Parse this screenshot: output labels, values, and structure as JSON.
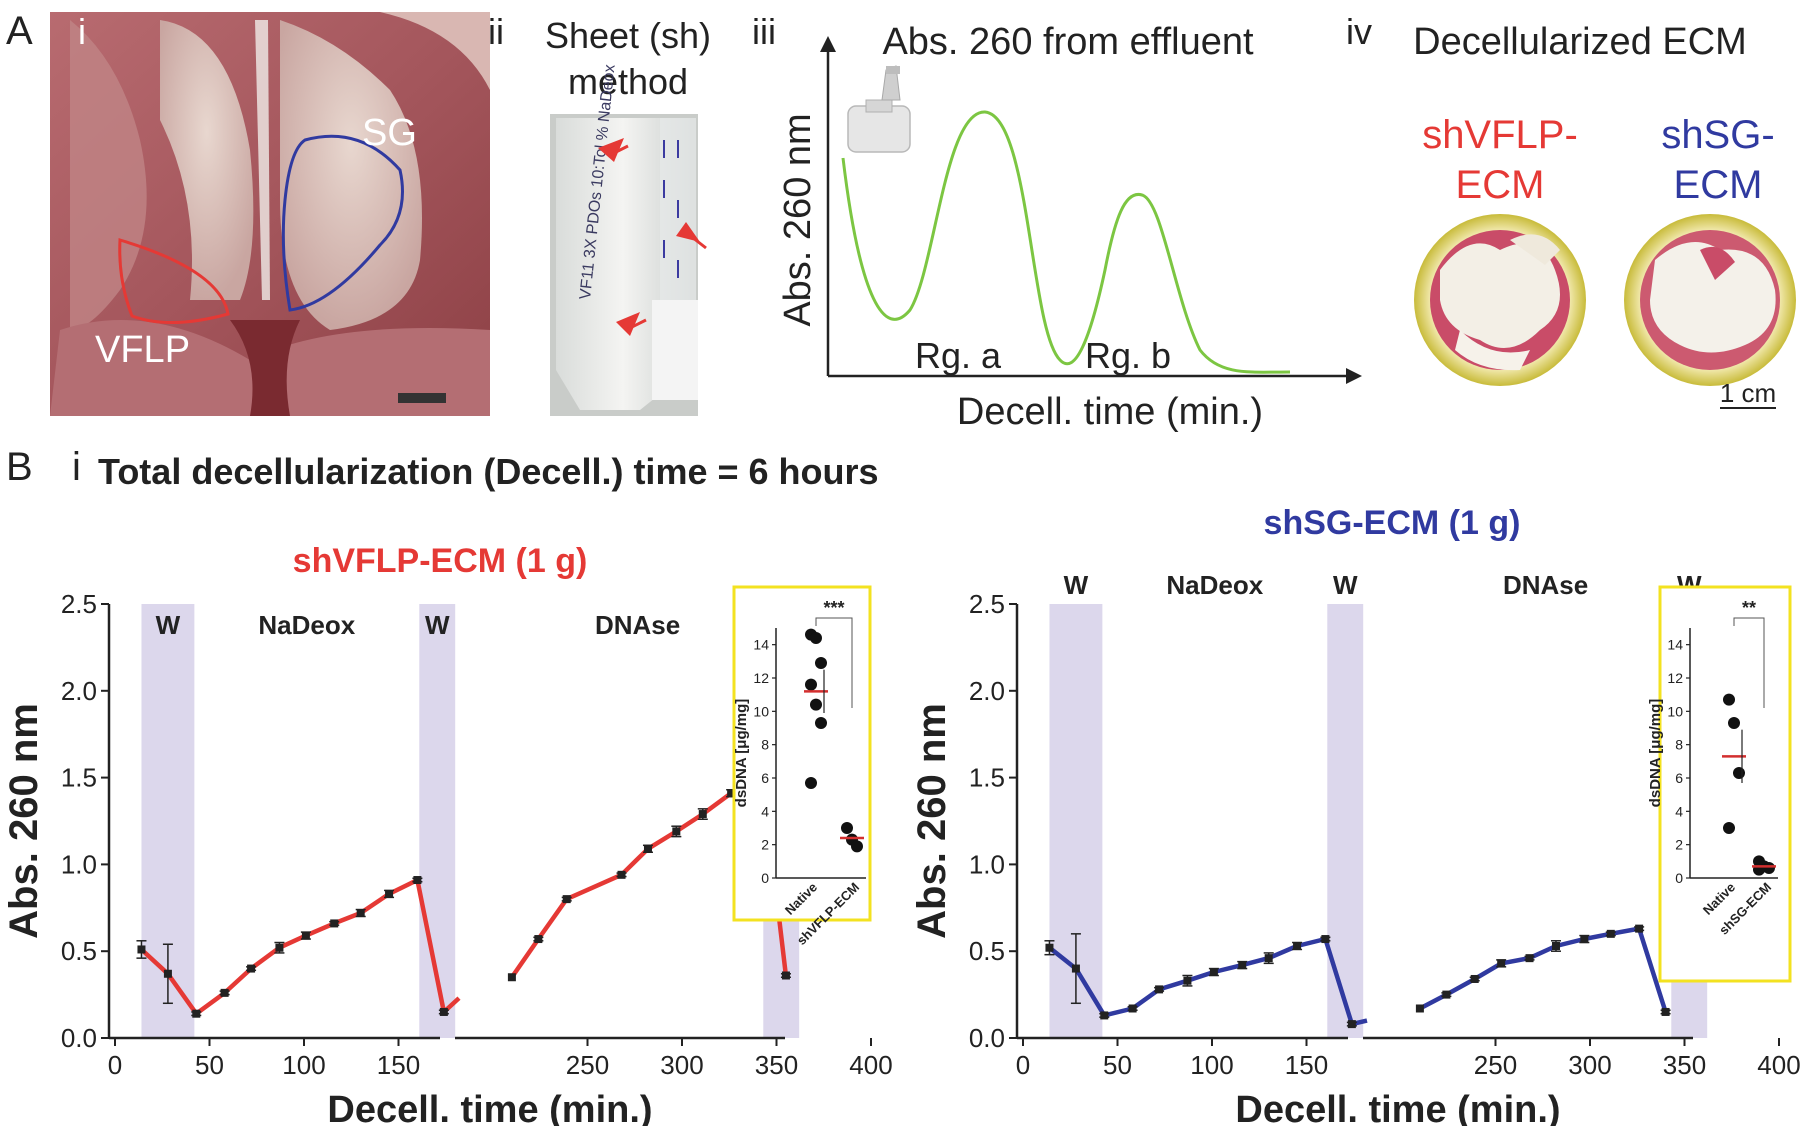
{
  "panel_letters": {
    "A": "A",
    "B": "B"
  },
  "panel_A": {
    "i": {
      "label": "i",
      "region_sg": "SG",
      "region_vflp": "VFLP",
      "scale_bar_label": "scale bar"
    },
    "ii": {
      "label": "ii",
      "title_line1": "Sheet (sh)",
      "title_line2": "method",
      "tube_writing": "VF11 3X PDOs 10:Tol % NaDeox"
    },
    "iii": {
      "label": "iii",
      "title": "Abs. 260 from effluent",
      "ylabel": "Abs. 260 nm",
      "xlabel": "Decell. time (min.)",
      "region_a": "Rg. a",
      "region_b": "Rg. b",
      "instrument_icon": "spectrophotometer-icon"
    },
    "iv": {
      "label": "iv",
      "title": "Decellularized ECM",
      "sample_left_line1": "shVFLP-",
      "sample_left_line2": "ECM",
      "sample_right_line1": "shSG-",
      "sample_right_line2": "ECM",
      "scale_label": "1 cm"
    }
  },
  "panel_B": {
    "label": "i",
    "heading": "Total decellularization (Decell.) time = 6 hours"
  },
  "colors": {
    "vflp_red": "#e53935",
    "sg_blue": "#303aa0",
    "wash_band": "#dcd7ec",
    "curve_green": "#7cc642",
    "inset_border": "#f3e220",
    "mean_red": "#d32f2f"
  },
  "chart_data": [
    {
      "type": "line",
      "title": "shVFLP-ECM (1 g)",
      "xlabel": "Decell. time (min.)",
      "ylabel": "Abs. 260 nm",
      "xlim": [
        0,
        400
      ],
      "ylim": [
        0,
        2.5
      ],
      "xticks": [
        "0",
        "50",
        "100",
        "150",
        "250",
        "300",
        "350",
        "400"
      ],
      "yticks": [
        "0.0",
        "0.5",
        "1.0",
        "1.5",
        "2.0",
        "2.5"
      ],
      "axis_break": [
        180,
        210
      ],
      "phases": [
        {
          "label": "W",
          "start": 14,
          "end": 42,
          "shaded": true
        },
        {
          "label": "NaDeox",
          "start": 42,
          "end": 161,
          "shaded": false
        },
        {
          "label": "W",
          "start": 161,
          "end": 180,
          "shaded": true
        },
        {
          "label": "DNAse",
          "start": 210,
          "end": 343,
          "shaded": false
        },
        {
          "label": "W",
          "start": 343,
          "end": 362,
          "shaded": true
        }
      ],
      "segments": [
        {
          "points": [
            [
              14,
              0.51
            ],
            [
              28,
              0.37
            ],
            [
              43,
              0.14
            ],
            [
              58,
              0.26
            ],
            [
              72,
              0.4
            ],
            [
              87,
              0.52
            ],
            [
              101,
              0.59
            ],
            [
              116,
              0.66
            ],
            [
              130,
              0.72
            ],
            [
              145,
              0.83
            ],
            [
              160,
              0.91
            ],
            [
              174,
              0.15
            ],
            [
              182,
              0.23
            ]
          ],
          "errors": [
            0.05,
            0.17,
            0.01,
            0.01,
            0.01,
            0.03,
            0.02,
            0.01,
            0.02,
            0.02,
            0.01,
            0.01,
            0
          ]
        },
        {
          "points": [
            [
              210,
              0.35
            ],
            [
              224,
              0.57
            ],
            [
              239,
              0.8
            ],
            [
              268,
              0.94
            ],
            [
              282,
              1.09
            ],
            [
              297,
              1.19
            ],
            [
              311,
              1.29
            ],
            [
              326,
              1.41
            ],
            [
              343,
              1.46
            ],
            [
              355,
              0.36
            ]
          ],
          "errors": [
            0,
            0.01,
            0.01,
            0.01,
            0.02,
            0.03,
            0.03,
            0.02,
            0.02,
            0.01
          ]
        }
      ],
      "inset": {
        "ylabel": "dsDNA [μg/mg]",
        "significance": "***",
        "yticks": [
          "0",
          "2",
          "4",
          "6",
          "8",
          "10",
          "12",
          "14"
        ],
        "ylim": [
          0,
          15
        ],
        "categories": [
          "Native",
          "shVFLP-ECM"
        ],
        "native_points": [
          14.6,
          14.4,
          12.9,
          11.6,
          10.4,
          9.3,
          5.7
        ],
        "native_mean": 11.2,
        "native_sem": 1.3,
        "ecm_points": [
          3.0,
          2.3,
          1.9
        ],
        "ecm_mean": 2.4
      }
    },
    {
      "type": "line",
      "title": "shSG-ECM (1 g)",
      "xlabel": "Decell. time (min.)",
      "ylabel": "Abs. 260 nm",
      "xlim": [
        0,
        400
      ],
      "ylim": [
        0,
        2.5
      ],
      "xticks": [
        "0",
        "50",
        "100",
        "150",
        "250",
        "300",
        "350",
        "400"
      ],
      "yticks": [
        "0.0",
        "0.5",
        "1.0",
        "1.5",
        "2.0",
        "2.5"
      ],
      "axis_break": [
        180,
        210
      ],
      "phases": [
        {
          "label": "W",
          "start": 14,
          "end": 42,
          "shaded": true
        },
        {
          "label": "NaDeox",
          "start": 42,
          "end": 161,
          "shaded": false
        },
        {
          "label": "W",
          "start": 161,
          "end": 180,
          "shaded": true
        },
        {
          "label": "DNAse",
          "start": 210,
          "end": 343,
          "shaded": false
        },
        {
          "label": "W",
          "start": 343,
          "end": 362,
          "shaded": true
        }
      ],
      "segments": [
        {
          "points": [
            [
              14,
              0.52
            ],
            [
              28,
              0.4
            ],
            [
              43,
              0.13
            ],
            [
              58,
              0.17
            ],
            [
              72,
              0.28
            ],
            [
              87,
              0.33
            ],
            [
              101,
              0.38
            ],
            [
              116,
              0.42
            ],
            [
              130,
              0.46
            ],
            [
              145,
              0.53
            ],
            [
              160,
              0.57
            ],
            [
              174,
              0.08
            ],
            [
              182,
              0.1
            ]
          ],
          "errors": [
            0.04,
            0.2,
            0.01,
            0.01,
            0.01,
            0.03,
            0.02,
            0.02,
            0.03,
            0.02,
            0.01,
            0.01,
            0
          ]
        },
        {
          "points": [
            [
              210,
              0.17
            ],
            [
              224,
              0.25
            ],
            [
              239,
              0.34
            ],
            [
              253,
              0.43
            ],
            [
              268,
              0.46
            ],
            [
              282,
              0.53
            ],
            [
              297,
              0.57
            ],
            [
              311,
              0.6
            ],
            [
              326,
              0.63
            ],
            [
              340,
              0.15
            ]
          ],
          "errors": [
            0,
            0.01,
            0.01,
            0.02,
            0.01,
            0.03,
            0.02,
            0.01,
            0.01,
            0.01
          ]
        }
      ],
      "inset": {
        "ylabel": "dsDNA [μg/mg]",
        "significance": "**",
        "yticks": [
          "0",
          "2",
          "4",
          "6",
          "8",
          "10",
          "12",
          "14"
        ],
        "ylim": [
          0,
          15
        ],
        "categories": [
          "Native",
          "shSG-ECM"
        ],
        "native_points": [
          10.7,
          9.3,
          6.3,
          3.0
        ],
        "native_mean": 7.3,
        "native_sem": 1.6,
        "ecm_points": [
          1.0,
          0.7,
          0.6,
          0.5
        ],
        "ecm_mean": 0.7
      }
    }
  ]
}
